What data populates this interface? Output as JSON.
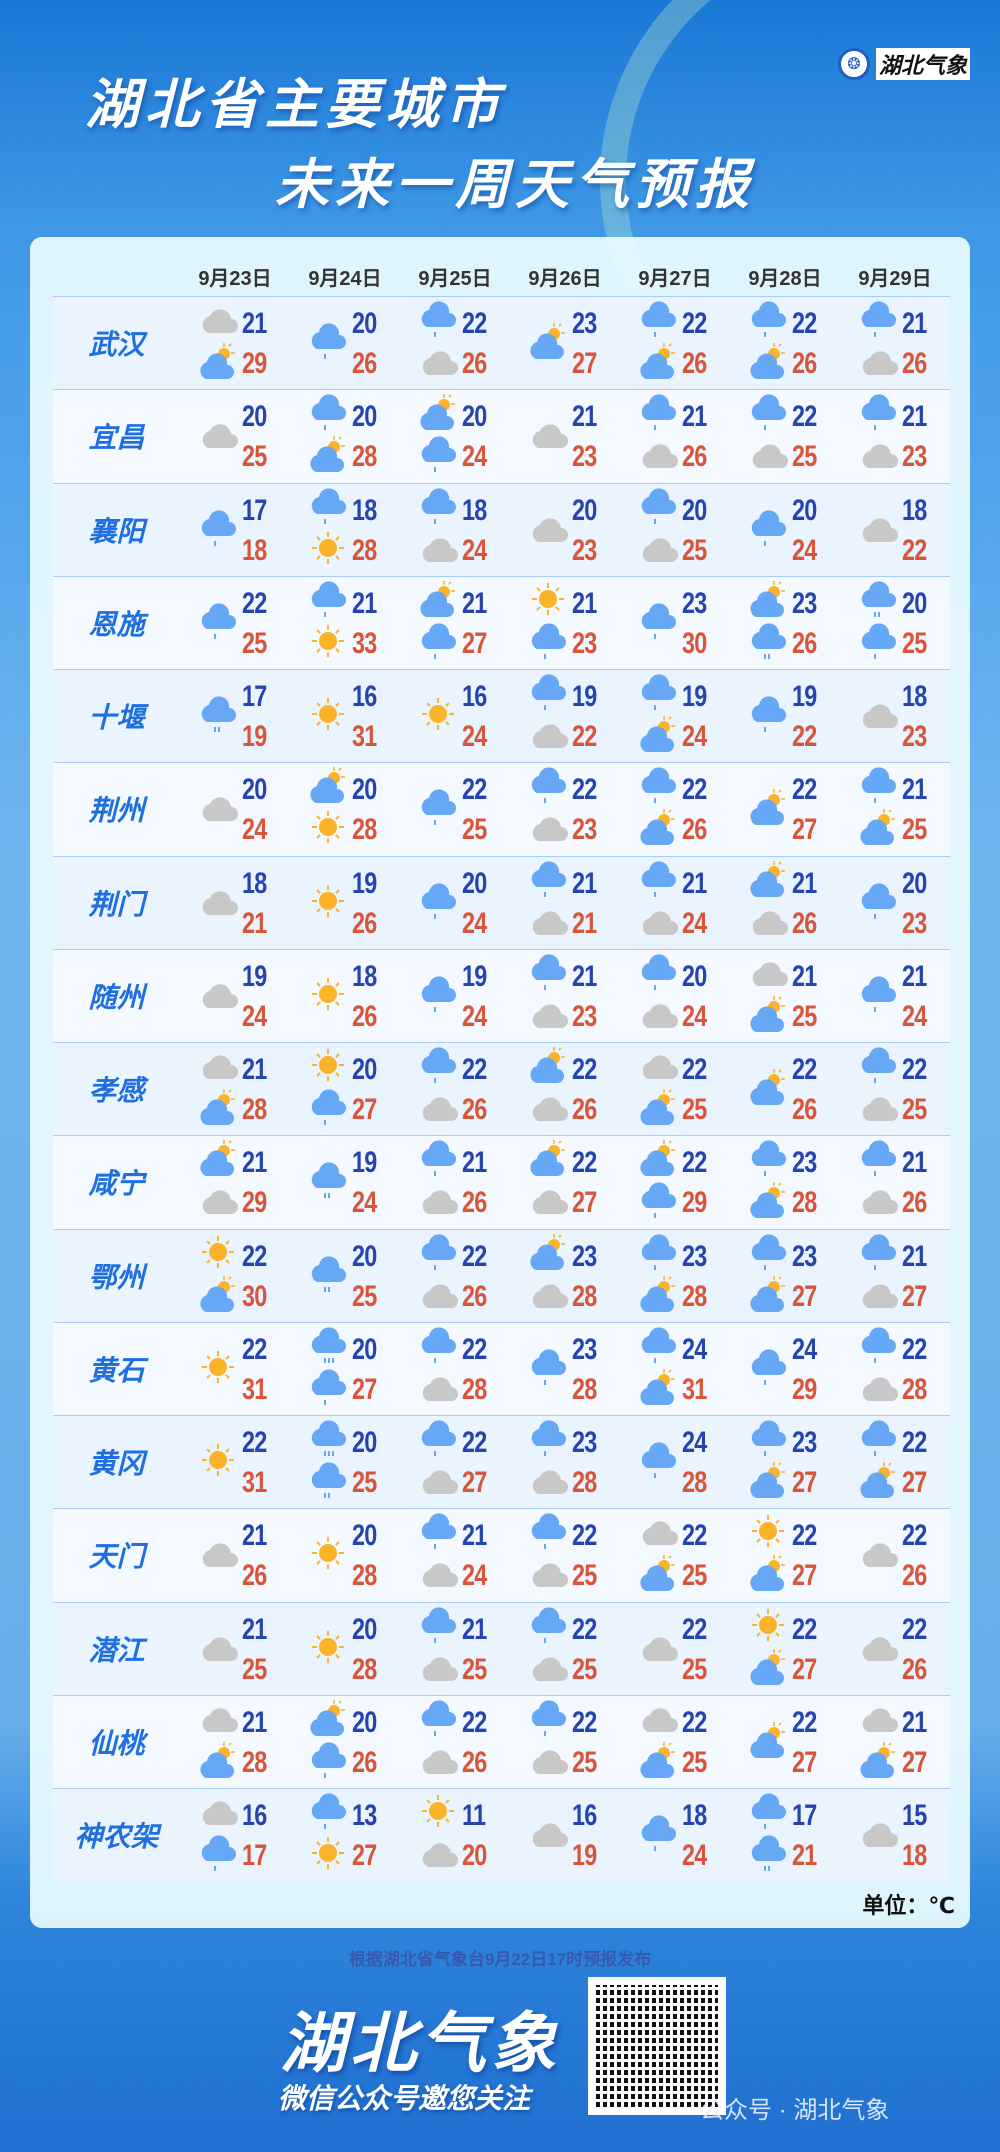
{
  "header": {
    "title_line1": "湖北省主要城市",
    "title_line2": "未来一周天气预报",
    "brand": "湖北气象"
  },
  "dates": [
    "9月23日",
    "9月24日",
    "9月25日",
    "9月26日",
    "9月27日",
    "9月28日",
    "9月29日"
  ],
  "icon_legend": {
    "C": "cloudy-icon",
    "S": "sunny-icon",
    "P": "partly-cloudy-icon",
    "R1": "light-rain-icon",
    "R2": "moderate-rain-icon",
    "R3": "heavy-rain-icon"
  },
  "colors": {
    "low_temp": "#2544ae",
    "high_temp": "#d9553a",
    "city": "#1f6fe0"
  },
  "cities": [
    {
      "name": "武汉",
      "days": [
        {
          "w": [
            "C",
            "P"
          ],
          "lo": "21",
          "hi": "29"
        },
        {
          "w": [
            "R1"
          ],
          "lo": "20",
          "hi": "26"
        },
        {
          "w": [
            "R1",
            "C"
          ],
          "lo": "22",
          "hi": "26"
        },
        {
          "w": [
            "P"
          ],
          "lo": "23",
          "hi": "27"
        },
        {
          "w": [
            "R1",
            "P"
          ],
          "lo": "22",
          "hi": "26"
        },
        {
          "w": [
            "R1",
            "P"
          ],
          "lo": "22",
          "hi": "26"
        },
        {
          "w": [
            "R1",
            "C"
          ],
          "lo": "21",
          "hi": "26"
        }
      ]
    },
    {
      "name": "宜昌",
      "days": [
        {
          "w": [
            "C"
          ],
          "lo": "20",
          "hi": "25"
        },
        {
          "w": [
            "R1",
            "P"
          ],
          "lo": "20",
          "hi": "28"
        },
        {
          "w": [
            "P",
            "R1"
          ],
          "lo": "20",
          "hi": "24"
        },
        {
          "w": [
            "C"
          ],
          "lo": "21",
          "hi": "23"
        },
        {
          "w": [
            "R1",
            "C"
          ],
          "lo": "21",
          "hi": "26"
        },
        {
          "w": [
            "R1",
            "C"
          ],
          "lo": "22",
          "hi": "25"
        },
        {
          "w": [
            "R1",
            "C"
          ],
          "lo": "21",
          "hi": "23"
        }
      ]
    },
    {
      "name": "襄阳",
      "days": [
        {
          "w": [
            "R1"
          ],
          "lo": "17",
          "hi": "18"
        },
        {
          "w": [
            "R1",
            "S"
          ],
          "lo": "18",
          "hi": "28"
        },
        {
          "w": [
            "R1",
            "C"
          ],
          "lo": "18",
          "hi": "24"
        },
        {
          "w": [
            "C"
          ],
          "lo": "20",
          "hi": "23"
        },
        {
          "w": [
            "R1",
            "C"
          ],
          "lo": "20",
          "hi": "25"
        },
        {
          "w": [
            "R1"
          ],
          "lo": "20",
          "hi": "24"
        },
        {
          "w": [
            "C"
          ],
          "lo": "18",
          "hi": "22"
        }
      ]
    },
    {
      "name": "恩施",
      "days": [
        {
          "w": [
            "R1"
          ],
          "lo": "22",
          "hi": "25"
        },
        {
          "w": [
            "R1",
            "S"
          ],
          "lo": "21",
          "hi": "33"
        },
        {
          "w": [
            "P",
            "R1"
          ],
          "lo": "21",
          "hi": "27"
        },
        {
          "w": [
            "S",
            "R1"
          ],
          "lo": "21",
          "hi": "23"
        },
        {
          "w": [
            "R1"
          ],
          "lo": "23",
          "hi": "30"
        },
        {
          "w": [
            "P",
            "R2"
          ],
          "lo": "23",
          "hi": "26"
        },
        {
          "w": [
            "R2",
            "R1"
          ],
          "lo": "20",
          "hi": "25"
        }
      ]
    },
    {
      "name": "十堰",
      "days": [
        {
          "w": [
            "R2"
          ],
          "lo": "17",
          "hi": "19"
        },
        {
          "w": [
            "S"
          ],
          "lo": "16",
          "hi": "31"
        },
        {
          "w": [
            "S"
          ],
          "lo": "16",
          "hi": "24"
        },
        {
          "w": [
            "R1",
            "C"
          ],
          "lo": "19",
          "hi": "22"
        },
        {
          "w": [
            "R1",
            "P"
          ],
          "lo": "19",
          "hi": "24"
        },
        {
          "w": [
            "R1"
          ],
          "lo": "19",
          "hi": "22"
        },
        {
          "w": [
            "C"
          ],
          "lo": "18",
          "hi": "23"
        }
      ]
    },
    {
      "name": "荆州",
      "days": [
        {
          "w": [
            "C"
          ],
          "lo": "20",
          "hi": "24"
        },
        {
          "w": [
            "P",
            "S"
          ],
          "lo": "20",
          "hi": "28"
        },
        {
          "w": [
            "R1"
          ],
          "lo": "22",
          "hi": "25"
        },
        {
          "w": [
            "R1",
            "C"
          ],
          "lo": "22",
          "hi": "23"
        },
        {
          "w": [
            "R1",
            "P"
          ],
          "lo": "22",
          "hi": "26"
        },
        {
          "w": [
            "P"
          ],
          "lo": "22",
          "hi": "27"
        },
        {
          "w": [
            "R1",
            "P"
          ],
          "lo": "21",
          "hi": "25"
        }
      ]
    },
    {
      "name": "荆门",
      "days": [
        {
          "w": [
            "C"
          ],
          "lo": "18",
          "hi": "21"
        },
        {
          "w": [
            "S"
          ],
          "lo": "19",
          "hi": "26"
        },
        {
          "w": [
            "R1"
          ],
          "lo": "20",
          "hi": "24"
        },
        {
          "w": [
            "R1",
            "C"
          ],
          "lo": "21",
          "hi": "21"
        },
        {
          "w": [
            "R1",
            "C"
          ],
          "lo": "21",
          "hi": "24"
        },
        {
          "w": [
            "P",
            "C"
          ],
          "lo": "21",
          "hi": "26"
        },
        {
          "w": [
            "R1"
          ],
          "lo": "20",
          "hi": "23"
        }
      ]
    },
    {
      "name": "随州",
      "days": [
        {
          "w": [
            "C"
          ],
          "lo": "19",
          "hi": "24"
        },
        {
          "w": [
            "S"
          ],
          "lo": "18",
          "hi": "26"
        },
        {
          "w": [
            "R1"
          ],
          "lo": "19",
          "hi": "24"
        },
        {
          "w": [
            "R1",
            "C"
          ],
          "lo": "21",
          "hi": "23"
        },
        {
          "w": [
            "R1",
            "C"
          ],
          "lo": "20",
          "hi": "24"
        },
        {
          "w": [
            "C",
            "P"
          ],
          "lo": "21",
          "hi": "25"
        },
        {
          "w": [
            "R1"
          ],
          "lo": "21",
          "hi": "24"
        }
      ]
    },
    {
      "name": "孝感",
      "days": [
        {
          "w": [
            "C",
            "P"
          ],
          "lo": "21",
          "hi": "28"
        },
        {
          "w": [
            "S",
            "R1"
          ],
          "lo": "20",
          "hi": "27"
        },
        {
          "w": [
            "R1",
            "C"
          ],
          "lo": "22",
          "hi": "26"
        },
        {
          "w": [
            "P",
            "C"
          ],
          "lo": "22",
          "hi": "26"
        },
        {
          "w": [
            "C",
            "P"
          ],
          "lo": "22",
          "hi": "25"
        },
        {
          "w": [
            "P"
          ],
          "lo": "22",
          "hi": "26"
        },
        {
          "w": [
            "R1",
            "C"
          ],
          "lo": "22",
          "hi": "25"
        }
      ]
    },
    {
      "name": "咸宁",
      "days": [
        {
          "w": [
            "P",
            "C"
          ],
          "lo": "21",
          "hi": "29"
        },
        {
          "w": [
            "R2"
          ],
          "lo": "19",
          "hi": "24"
        },
        {
          "w": [
            "R1",
            "C"
          ],
          "lo": "21",
          "hi": "26"
        },
        {
          "w": [
            "P",
            "C"
          ],
          "lo": "22",
          "hi": "27"
        },
        {
          "w": [
            "P",
            "R1"
          ],
          "lo": "22",
          "hi": "29"
        },
        {
          "w": [
            "R1",
            "P"
          ],
          "lo": "23",
          "hi": "28"
        },
        {
          "w": [
            "R1",
            "C"
          ],
          "lo": "21",
          "hi": "26"
        }
      ]
    },
    {
      "name": "鄂州",
      "days": [
        {
          "w": [
            "S",
            "P"
          ],
          "lo": "22",
          "hi": "30"
        },
        {
          "w": [
            "R2"
          ],
          "lo": "20",
          "hi": "25"
        },
        {
          "w": [
            "R1",
            "C"
          ],
          "lo": "22",
          "hi": "26"
        },
        {
          "w": [
            "P",
            "C"
          ],
          "lo": "23",
          "hi": "28"
        },
        {
          "w": [
            "R1",
            "P"
          ],
          "lo": "23",
          "hi": "28"
        },
        {
          "w": [
            "R1",
            "P"
          ],
          "lo": "23",
          "hi": "27"
        },
        {
          "w": [
            "R1",
            "C"
          ],
          "lo": "21",
          "hi": "27"
        }
      ]
    },
    {
      "name": "黄石",
      "days": [
        {
          "w": [
            "S"
          ],
          "lo": "22",
          "hi": "31"
        },
        {
          "w": [
            "R3",
            "R1"
          ],
          "lo": "20",
          "hi": "27"
        },
        {
          "w": [
            "R1",
            "C"
          ],
          "lo": "22",
          "hi": "28"
        },
        {
          "w": [
            "R1"
          ],
          "lo": "23",
          "hi": "28"
        },
        {
          "w": [
            "R1",
            "P"
          ],
          "lo": "24",
          "hi": "31"
        },
        {
          "w": [
            "R1"
          ],
          "lo": "24",
          "hi": "29"
        },
        {
          "w": [
            "R1",
            "C"
          ],
          "lo": "22",
          "hi": "28"
        }
      ]
    },
    {
      "name": "黄冈",
      "days": [
        {
          "w": [
            "S"
          ],
          "lo": "22",
          "hi": "31"
        },
        {
          "w": [
            "R3",
            "R2"
          ],
          "lo": "20",
          "hi": "25"
        },
        {
          "w": [
            "R1",
            "C"
          ],
          "lo": "22",
          "hi": "27"
        },
        {
          "w": [
            "R1",
            "C"
          ],
          "lo": "23",
          "hi": "28"
        },
        {
          "w": [
            "R1"
          ],
          "lo": "24",
          "hi": "28"
        },
        {
          "w": [
            "R1",
            "P"
          ],
          "lo": "23",
          "hi": "27"
        },
        {
          "w": [
            "R1",
            "P"
          ],
          "lo": "22",
          "hi": "27"
        }
      ]
    },
    {
      "name": "天门",
      "days": [
        {
          "w": [
            "C"
          ],
          "lo": "21",
          "hi": "26"
        },
        {
          "w": [
            "S"
          ],
          "lo": "20",
          "hi": "28"
        },
        {
          "w": [
            "R1",
            "C"
          ],
          "lo": "21",
          "hi": "24"
        },
        {
          "w": [
            "R1",
            "C"
          ],
          "lo": "22",
          "hi": "25"
        },
        {
          "w": [
            "C",
            "P"
          ],
          "lo": "22",
          "hi": "25"
        },
        {
          "w": [
            "S",
            "P"
          ],
          "lo": "22",
          "hi": "27"
        },
        {
          "w": [
            "C"
          ],
          "lo": "22",
          "hi": "26"
        }
      ]
    },
    {
      "name": "潜江",
      "days": [
        {
          "w": [
            "C"
          ],
          "lo": "21",
          "hi": "25"
        },
        {
          "w": [
            "S"
          ],
          "lo": "20",
          "hi": "28"
        },
        {
          "w": [
            "R1",
            "C"
          ],
          "lo": "21",
          "hi": "25"
        },
        {
          "w": [
            "R1",
            "C"
          ],
          "lo": "22",
          "hi": "25"
        },
        {
          "w": [
            "C"
          ],
          "lo": "22",
          "hi": "25"
        },
        {
          "w": [
            "S",
            "P"
          ],
          "lo": "22",
          "hi": "27"
        },
        {
          "w": [
            "C"
          ],
          "lo": "22",
          "hi": "26"
        }
      ]
    },
    {
      "name": "仙桃",
      "days": [
        {
          "w": [
            "C",
            "P"
          ],
          "lo": "21",
          "hi": "28"
        },
        {
          "w": [
            "P",
            "R1"
          ],
          "lo": "20",
          "hi": "26"
        },
        {
          "w": [
            "R1",
            "C"
          ],
          "lo": "22",
          "hi": "26"
        },
        {
          "w": [
            "R1",
            "C"
          ],
          "lo": "22",
          "hi": "25"
        },
        {
          "w": [
            "C",
            "P"
          ],
          "lo": "22",
          "hi": "25"
        },
        {
          "w": [
            "P"
          ],
          "lo": "22",
          "hi": "27"
        },
        {
          "w": [
            "C",
            "P"
          ],
          "lo": "21",
          "hi": "27"
        }
      ]
    },
    {
      "name": "神农架",
      "days": [
        {
          "w": [
            "C",
            "R1"
          ],
          "lo": "16",
          "hi": "17"
        },
        {
          "w": [
            "R1",
            "S"
          ],
          "lo": "13",
          "hi": "27"
        },
        {
          "w": [
            "S",
            "C"
          ],
          "lo": "11",
          "hi": "20"
        },
        {
          "w": [
            "C"
          ],
          "lo": "16",
          "hi": "19"
        },
        {
          "w": [
            "R1"
          ],
          "lo": "18",
          "hi": "24"
        },
        {
          "w": [
            "R1",
            "R2"
          ],
          "lo": "17",
          "hi": "21"
        },
        {
          "w": [
            "C"
          ],
          "lo": "15",
          "hi": "18"
        }
      ]
    }
  ],
  "unit": "单位：℃",
  "footer": {
    "note": "根据湖北省气象台9月22日17时预报发布",
    "brand": "湖北气象",
    "subtitle": "微信公众号邀您关注",
    "watermark": "公众号 · 湖北气象"
  }
}
